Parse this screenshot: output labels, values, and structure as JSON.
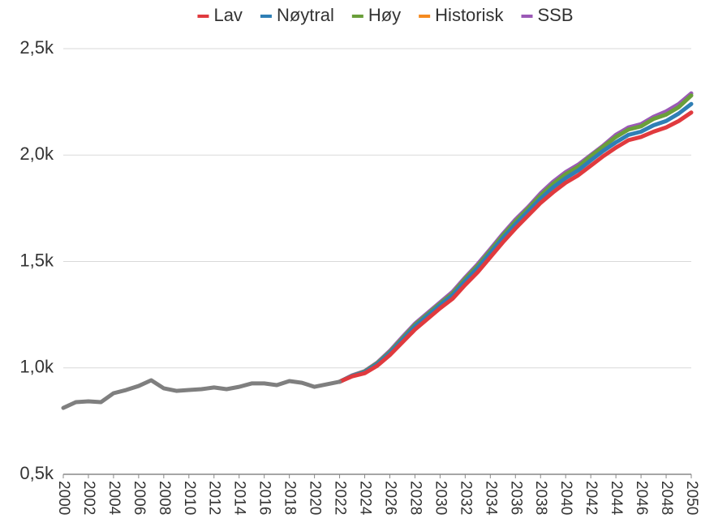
{
  "chart_data": {
    "type": "line",
    "x": [
      2000,
      2001,
      2002,
      2003,
      2004,
      2005,
      2006,
      2007,
      2008,
      2009,
      2010,
      2011,
      2012,
      2013,
      2014,
      2015,
      2016,
      2017,
      2018,
      2019,
      2020,
      2021,
      2022,
      2023,
      2024,
      2025,
      2026,
      2027,
      2028,
      2029,
      2030,
      2031,
      2032,
      2033,
      2034,
      2035,
      2036,
      2037,
      2038,
      2039,
      2040,
      2041,
      2042,
      2043,
      2044,
      2045,
      2046,
      2047,
      2048,
      2049,
      2050
    ],
    "series": [
      {
        "name": "Lav",
        "color": "#e03a3e",
        "values": [
          null,
          null,
          null,
          null,
          null,
          null,
          null,
          null,
          null,
          null,
          null,
          null,
          null,
          null,
          null,
          null,
          null,
          null,
          null,
          null,
          null,
          null,
          935,
          960,
          975,
          1010,
          1060,
          1120,
          1180,
          1230,
          1280,
          1325,
          1390,
          1450,
          1520,
          1590,
          1655,
          1715,
          1775,
          1825,
          1870,
          1905,
          1950,
          1995,
          2035,
          2070,
          2085,
          2110,
          2130,
          2160,
          2200
        ]
      },
      {
        "name": "Nøytral",
        "color": "#2f7fb5",
        "values": [
          null,
          null,
          null,
          null,
          null,
          null,
          null,
          null,
          null,
          null,
          null,
          null,
          null,
          null,
          null,
          null,
          null,
          null,
          null,
          null,
          null,
          null,
          935,
          962,
          980,
          1018,
          1070,
          1132,
          1195,
          1245,
          1295,
          1342,
          1408,
          1470,
          1540,
          1610,
          1675,
          1735,
          1795,
          1848,
          1892,
          1928,
          1975,
          2020,
          2060,
          2095,
          2110,
          2140,
          2160,
          2195,
          2240
        ]
      },
      {
        "name": "Høy",
        "color": "#6a9f3a",
        "values": [
          null,
          null,
          null,
          null,
          null,
          null,
          null,
          null,
          null,
          null,
          null,
          null,
          null,
          null,
          null,
          null,
          null,
          null,
          null,
          null,
          null,
          null,
          935,
          963,
          983,
          1022,
          1075,
          1138,
          1202,
          1252,
          1302,
          1350,
          1418,
          1480,
          1550,
          1622,
          1688,
          1748,
          1810,
          1865,
          1910,
          1945,
          1995,
          2040,
          2085,
          2120,
          2135,
          2170,
          2190,
          2225,
          2280
        ]
      },
      {
        "name": "Historisk",
        "color": "#7f7f7f",
        "legend_color": "#f58a1f",
        "values": [
          812,
          839,
          843,
          839,
          881,
          896,
          915,
          942,
          904,
          892,
          896,
          900,
          908,
          900,
          911,
          927,
          927,
          919,
          938,
          930,
          911,
          923,
          935,
          null,
          null,
          null,
          null,
          null,
          null,
          null,
          null,
          null,
          null,
          null,
          null,
          null,
          null,
          null,
          null,
          null,
          null,
          null,
          null,
          null,
          null,
          null,
          null,
          null,
          null,
          null,
          null
        ]
      },
      {
        "name": "SSB",
        "color": "#9b59b6",
        "values": [
          null,
          null,
          null,
          null,
          null,
          null,
          null,
          null,
          null,
          null,
          null,
          null,
          null,
          null,
          null,
          null,
          null,
          null,
          null,
          null,
          null,
          null,
          935,
          965,
          985,
          1025,
          1080,
          1145,
          1208,
          1258,
          1308,
          1358,
          1425,
          1488,
          1558,
          1630,
          1697,
          1755,
          1820,
          1875,
          1920,
          1955,
          2000,
          2045,
          2095,
          2130,
          2145,
          2180,
          2205,
          2240,
          2290
        ]
      }
    ],
    "xlim": [
      2000,
      2050
    ],
    "xticks": [
      2000,
      2002,
      2004,
      2006,
      2008,
      2010,
      2012,
      2014,
      2016,
      2018,
      2020,
      2022,
      2024,
      2026,
      2028,
      2030,
      2032,
      2034,
      2036,
      2038,
      2040,
      2042,
      2044,
      2046,
      2048,
      2050
    ],
    "ylim": [
      500,
      2500
    ],
    "yticks": [
      {
        "value": 500,
        "label": "0,5k"
      },
      {
        "value": 1000,
        "label": "1,0k"
      },
      {
        "value": 1500,
        "label": "1,5k"
      },
      {
        "value": 2000,
        "label": "2,0k"
      },
      {
        "value": 2500,
        "label": "2,5k"
      }
    ],
    "grid": true,
    "legend": "top"
  }
}
